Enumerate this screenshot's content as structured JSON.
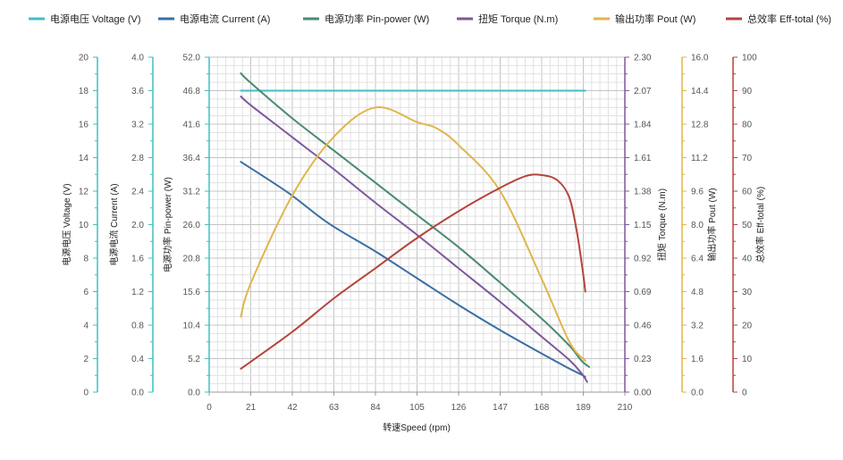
{
  "chart_data": {
    "type": "line",
    "legend_position": "top",
    "grid": true,
    "x_axis": {
      "label": "转速Speed (rpm)",
      "range": [
        0,
        210
      ],
      "ticks": [
        "0",
        "21",
        "42",
        "63",
        "84",
        "105",
        "126",
        "147",
        "168",
        "189",
        "210"
      ]
    },
    "y_axes": [
      {
        "id": "voltage",
        "label": "电源电压 Voltage (V)",
        "range": [
          0,
          20
        ],
        "color": "#3ebfc4",
        "ticks": [
          "0",
          "2",
          "4",
          "6",
          "8",
          "10",
          "12",
          "14",
          "16",
          "18",
          "20"
        ]
      },
      {
        "id": "current",
        "label": "电源电流 Current (A)",
        "range": [
          0,
          4
        ],
        "color": "#3ebfc4",
        "ticks": [
          "0.0",
          "0.4",
          "0.8",
          "1.2",
          "1.6",
          "2.0",
          "2.4",
          "2.8",
          "3.2",
          "3.6",
          "4.0"
        ]
      },
      {
        "id": "power",
        "label": "电源功率 Pin-power (W)",
        "range": [
          0,
          52
        ],
        "color": "#3ebfc4",
        "ticks": [
          "0.0",
          "5.2",
          "10.4",
          "15.6",
          "20.8",
          "26.0",
          "31.2",
          "36.4",
          "41.6",
          "46.8",
          "52.0"
        ]
      },
      {
        "id": "torque",
        "label": "扭矩 Torque (N.m)",
        "range": [
          0,
          2.3
        ],
        "color": "#7e579c",
        "ticks": [
          "0.00",
          "0.23",
          "0.46",
          "0.69",
          "0.92",
          "1.15",
          "1.38",
          "1.61",
          "1.84",
          "2.07",
          "2.30"
        ]
      },
      {
        "id": "pout",
        "label": "输出功率 Pout (W)",
        "range": [
          0,
          16
        ],
        "color": "#e0b64a",
        "ticks": [
          "0.0",
          "1.6",
          "3.2",
          "4.8",
          "6.4",
          "8.0",
          "9.6",
          "11.2",
          "12.8",
          "14.4",
          "16.0"
        ]
      },
      {
        "id": "eff",
        "label": "总效率 Eff-total (%)",
        "range": [
          0,
          100
        ],
        "color": "#b5443a",
        "ticks": [
          "0",
          "10",
          "20",
          "30",
          "40",
          "50",
          "60",
          "70",
          "80",
          "90",
          "100"
        ]
      }
    ],
    "series": [
      {
        "name": "电源电压 Voltage (V)",
        "axis": "voltage",
        "color": "#3ebfc4",
        "x": [
          16,
          190
        ],
        "y": [
          18,
          18
        ]
      },
      {
        "name": "电源电流 Current (A)",
        "axis": "current",
        "color": "#3a6fa3",
        "x": [
          16,
          40,
          60,
          84,
          105,
          126,
          147,
          168,
          182,
          188,
          190
        ],
        "y": [
          2.75,
          2.38,
          2.02,
          1.68,
          1.36,
          1.04,
          0.74,
          0.46,
          0.28,
          0.21,
          0.18
        ]
      },
      {
        "name": "电源功率 Pin-power (W)",
        "axis": "power",
        "color": "#4a8a70",
        "x": [
          16,
          21,
          42,
          63,
          84,
          105,
          126,
          147,
          168,
          182,
          188,
          192
        ],
        "y": [
          49.5,
          48.0,
          42.5,
          37.5,
          32.5,
          27.5,
          22.5,
          17.0,
          11.4,
          7.2,
          4.9,
          3.9
        ]
      },
      {
        "name": "扭矩 Torque (N.m)",
        "axis": "torque",
        "color": "#7e579c",
        "x": [
          16,
          21,
          42,
          63,
          84,
          105,
          126,
          147,
          168,
          182,
          188,
          191
        ],
        "y": [
          2.03,
          1.97,
          1.75,
          1.53,
          1.3,
          1.08,
          0.85,
          0.62,
          0.38,
          0.22,
          0.13,
          0.07
        ]
      },
      {
        "name": "输出功率 Pout (W)",
        "axis": "pout",
        "color": "#e0b64a",
        "x": [
          16,
          21,
          42,
          63,
          84,
          105,
          115,
          126,
          147,
          168,
          182,
          190
        ],
        "y": [
          3.6,
          5.2,
          9.4,
          12.2,
          13.6,
          12.9,
          12.6,
          11.8,
          9.6,
          5.4,
          2.4,
          1.5
        ]
      },
      {
        "name": "总效率 Eff-total (%)",
        "axis": "eff",
        "color": "#b5443a",
        "x": [
          16,
          42,
          63,
          84,
          105,
          126,
          147,
          160,
          168,
          176,
          182,
          186,
          189,
          190
        ],
        "y": [
          7,
          18,
          28,
          37,
          46,
          54,
          61,
          64.5,
          64.8,
          63.2,
          58,
          47,
          35,
          30
        ]
      }
    ]
  }
}
